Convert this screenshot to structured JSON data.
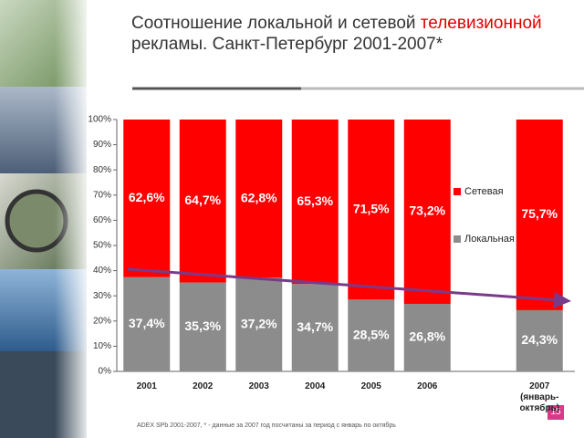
{
  "title_parts": [
    "Соотношение локальной и сетевой",
    "телевизионной",
    "рекламы. Санкт-Петербург",
    "2001-2007*"
  ],
  "chart_data": {
    "type": "stacked_bar",
    "categories": [
      "2001",
      "2002",
      "2003",
      "2004",
      "2005",
      "2006",
      "2007 (январь-октябрь)"
    ],
    "series": [
      {
        "name": "Локальная",
        "color": "#8c8c8c",
        "values": [
          37.4,
          35.3,
          37.2,
          34.7,
          28.5,
          26.8,
          24.3
        ],
        "value_labels": [
          "37,4%",
          "35,3%",
          "37,2%",
          "34,7%",
          "28,5%",
          "26,8%",
          "24,3%"
        ]
      },
      {
        "name": "Сетевая",
        "color": "#ff0000",
        "values": [
          62.6,
          64.7,
          62.8,
          65.3,
          71.5,
          73.2,
          75.7
        ],
        "value_labels": [
          "62,6%",
          "64,7%",
          "62,8%",
          "65,3%",
          "71,5%",
          "73,2%",
          "75,7%"
        ]
      }
    ],
    "ylim": [
      0,
      100
    ],
    "yticks": [
      {
        "value": 0,
        "label": "0%"
      },
      {
        "value": 10,
        "label": "10%"
      },
      {
        "value": 20,
        "label": "20%"
      },
      {
        "value": 30,
        "label": "30%"
      },
      {
        "value": 40,
        "label": "40%"
      },
      {
        "value": 50,
        "label": "50%"
      },
      {
        "value": 60,
        "label": "60%"
      },
      {
        "value": 70,
        "label": "70%"
      },
      {
        "value": 80,
        "label": "80%"
      },
      {
        "value": 90,
        "label": "90%"
      },
      {
        "value": 100,
        "label": "100%"
      }
    ]
  },
  "footnote": "ADEX SPb 2001-2007, * - данные за 2007 год посчитаны за период с январь по октябрь",
  "page_number": "15"
}
